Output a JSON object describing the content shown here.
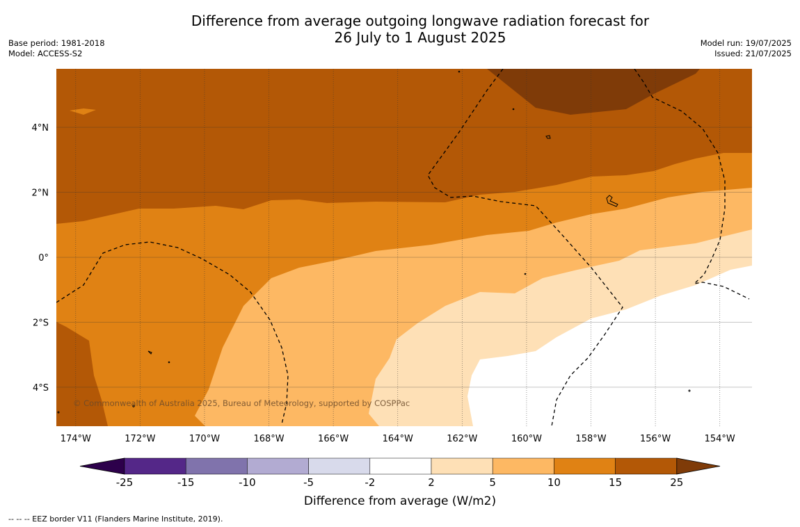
{
  "title": {
    "line1": "Difference from average outgoing longwave radiation forecast for",
    "line2": "26 July to 1 August 2025"
  },
  "meta_left": {
    "base_period": "Base period: 1981-2018",
    "model": "Model: ACCESS-S2"
  },
  "meta_right": {
    "model_run": "Model run: 19/07/2025",
    "issued": "Issued: 21/07/2025"
  },
  "map": {
    "lon_range": [
      -174.6,
      -153.0
    ],
    "lat_range": [
      -5.2,
      5.8
    ],
    "lon_ticks": [
      {
        "value": -174,
        "label": "174°W"
      },
      {
        "value": -172,
        "label": "172°W"
      },
      {
        "value": -170,
        "label": "170°W"
      },
      {
        "value": -168,
        "label": "168°W"
      },
      {
        "value": -166,
        "label": "166°W"
      },
      {
        "value": -164,
        "label": "164°W"
      },
      {
        "value": -162,
        "label": "162°W"
      },
      {
        "value": -160,
        "label": "160°W"
      },
      {
        "value": -158,
        "label": "158°W"
      },
      {
        "value": -156,
        "label": "156°W"
      },
      {
        "value": -154,
        "label": "154°W"
      }
    ],
    "lat_ticks": [
      {
        "value": 4,
        "label": "4°N"
      },
      {
        "value": 2,
        "label": "2°N"
      },
      {
        "value": 0,
        "label": "0°"
      },
      {
        "value": -2,
        "label": "2°S"
      },
      {
        "value": -4,
        "label": "4°S"
      }
    ],
    "copyright": "© Commonwealth of Australia 2025, Bureau of Meteorology, supported by COSPPac",
    "colors": {
      "c_10_15": "#e08214",
      "c_15_25": "#b35806",
      "c_25_plus": "#7f3b08",
      "c_5_10": "#fdb863",
      "c_2_5": "#fee0b6",
      "c_neutral": "#ffffff",
      "eez": "#000000"
    }
  },
  "colorbar": {
    "label": "Difference from average (W/m2)",
    "ticks": [
      "-25",
      "-15",
      "-10",
      "-5",
      "-2",
      "2",
      "5",
      "10",
      "15",
      "25"
    ],
    "segments": [
      {
        "range": "-25 to -15",
        "color": "#542788"
      },
      {
        "range": "-15 to -10",
        "color": "#8073ac"
      },
      {
        "range": "-10 to -5",
        "color": "#b2abd2"
      },
      {
        "range": "-5 to -2",
        "color": "#d8daeb"
      },
      {
        "range": "-2 to 2",
        "color": "#ffffff"
      },
      {
        "range": "2 to 5",
        "color": "#fee0b6"
      },
      {
        "range": "5 to 10",
        "color": "#fdb863"
      },
      {
        "range": "10 to 15",
        "color": "#e08214"
      },
      {
        "range": "15 to 25",
        "color": "#b35806"
      }
    ],
    "extend_low_color": "#2d004b",
    "extend_high_color": "#7f3b08"
  },
  "footer": "--  --  -- EEZ border V11 (Flanders Marine Institute, 2019)."
}
